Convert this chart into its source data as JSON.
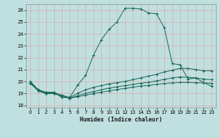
{
  "title": "",
  "xlabel": "Humidex (Indice chaleur)",
  "bg_color": "#c0e0e0",
  "grid_color": "#d8b0b0",
  "line_color": "#1a6858",
  "xlim": [
    -0.5,
    23.5
  ],
  "ylim": [
    17.8,
    26.5
  ],
  "xticks": [
    0,
    1,
    2,
    3,
    4,
    5,
    6,
    7,
    8,
    9,
    10,
    11,
    12,
    13,
    14,
    15,
    16,
    17,
    18,
    19,
    20,
    21,
    22,
    23
  ],
  "yticks": [
    18,
    19,
    20,
    21,
    22,
    23,
    24,
    25,
    26
  ],
  "line1_x": [
    0,
    1,
    2,
    3,
    4,
    5,
    6,
    7,
    8,
    9,
    10,
    11,
    12,
    13,
    14,
    15,
    16,
    17,
    18,
    19,
    20,
    21,
    22,
    23
  ],
  "line1_y": [
    20.0,
    19.3,
    19.1,
    19.1,
    18.65,
    18.65,
    19.7,
    20.5,
    22.2,
    23.5,
    24.4,
    25.0,
    26.15,
    26.15,
    26.1,
    25.75,
    25.7,
    24.5,
    21.5,
    21.4,
    20.2,
    20.3,
    19.9,
    19.6
  ],
  "line2_x": [
    0,
    1,
    2,
    3,
    4,
    5,
    6,
    7,
    8,
    9,
    10,
    11,
    12,
    13,
    14,
    15,
    16,
    17,
    18,
    19,
    20,
    21,
    22,
    23
  ],
  "line2_y": [
    19.9,
    19.3,
    19.05,
    19.05,
    18.85,
    18.65,
    19.0,
    19.3,
    19.5,
    19.65,
    19.8,
    19.9,
    20.0,
    20.15,
    20.3,
    20.45,
    20.6,
    20.8,
    20.95,
    21.1,
    21.1,
    21.0,
    20.9,
    20.9
  ],
  "line3_x": [
    0,
    1,
    2,
    3,
    4,
    5,
    6,
    7,
    8,
    9,
    10,
    11,
    12,
    13,
    14,
    15,
    16,
    17,
    18,
    19,
    20,
    21,
    22,
    23
  ],
  "line3_y": [
    19.85,
    19.25,
    19.0,
    19.0,
    18.8,
    18.6,
    18.8,
    19.0,
    19.15,
    19.3,
    19.45,
    19.55,
    19.65,
    19.75,
    19.85,
    19.93,
    20.05,
    20.18,
    20.3,
    20.38,
    20.35,
    20.3,
    20.2,
    20.15
  ],
  "line4_x": [
    0,
    1,
    2,
    3,
    4,
    5,
    6,
    7,
    8,
    9,
    10,
    11,
    12,
    13,
    14,
    15,
    16,
    17,
    18,
    19,
    20,
    21,
    22,
    23
  ],
  "line4_y": [
    19.85,
    19.2,
    18.98,
    18.98,
    18.78,
    18.58,
    18.72,
    18.85,
    18.98,
    19.1,
    19.22,
    19.32,
    19.42,
    19.52,
    19.6,
    19.67,
    19.75,
    19.82,
    19.88,
    19.92,
    19.92,
    19.9,
    19.88,
    19.85
  ]
}
